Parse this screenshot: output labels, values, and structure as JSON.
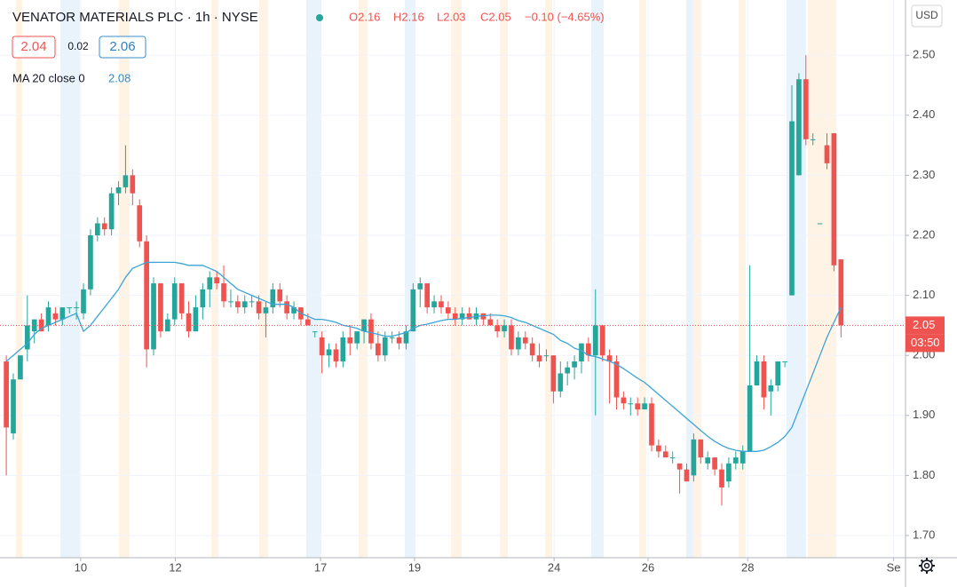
{
  "chart_data": {
    "type": "candlestick",
    "title": "VENATOR MATERIALS PLC · 1h · NYSE",
    "ohlc": [
      "O2.16",
      "H2.16",
      "L2.03",
      "C2.05",
      "−0.10 (−4.65%)"
    ],
    "bid": "2.04",
    "spread": "0.02",
    "ask": "2.06",
    "currency": "USD",
    "countdown": "03:50",
    "up_color": "#26a69a",
    "down_color": "#ef5350",
    "ylim": [
      1.663,
      2.592
    ],
    "yticks": [
      {
        "value": 1.7,
        "label": "1.70"
      },
      {
        "value": 1.8,
        "label": "1.80"
      },
      {
        "value": 1.9,
        "label": "1.90"
      },
      {
        "value": 2.0,
        "label": "2.00"
      },
      {
        "value": 2.1,
        "label": "2.10"
      },
      {
        "value": 2.2,
        "label": "2.20"
      },
      {
        "value": 2.3,
        "label": "2.30"
      },
      {
        "value": 2.4,
        "label": "2.40"
      },
      {
        "value": 2.5,
        "label": "2.50"
      }
    ],
    "xlim": [
      -0.9,
      128.2
    ],
    "xticks": [
      {
        "value": 10.6,
        "label": "10"
      },
      {
        "value": 24.1,
        "label": "12"
      },
      {
        "value": 44.8,
        "label": "17"
      },
      {
        "value": 58.2,
        "label": "19"
      },
      {
        "value": 78.1,
        "label": "24"
      },
      {
        "value": 91.5,
        "label": "26"
      },
      {
        "value": 105.7,
        "label": "28"
      },
      {
        "value": 126.5,
        "label": "Se"
      }
    ],
    "grid": true,
    "candles": [
      [
        1.99,
        2.0,
        1.8,
        1.88
      ],
      [
        1.87,
        1.97,
        1.86,
        1.96
      ],
      [
        1.96,
        2.0,
        1.96,
        2.0
      ],
      [
        2.01,
        2.1,
        1.99,
        2.05
      ],
      [
        2.04,
        2.06,
        2.02,
        2.06
      ],
      [
        2.06,
        2.07,
        2.04,
        2.04
      ],
      [
        2.05,
        2.09,
        2.04,
        2.08
      ],
      [
        2.07,
        2.08,
        2.05,
        2.06
      ],
      [
        2.06,
        2.08,
        2.05,
        2.08
      ],
      [
        2.08,
        2.08,
        2.07,
        2.08
      ],
      [
        2.08,
        2.09,
        2.06,
        2.08
      ],
      [
        2.07,
        2.12,
        2.06,
        2.11
      ],
      [
        2.11,
        2.21,
        2.1,
        2.2
      ],
      [
        2.2,
        2.23,
        2.19,
        2.22
      ],
      [
        2.22,
        2.23,
        2.2,
        2.21
      ],
      [
        2.21,
        2.28,
        2.2,
        2.27
      ],
      [
        2.27,
        2.29,
        2.25,
        2.28
      ],
      [
        2.28,
        2.35,
        2.27,
        2.3
      ],
      [
        2.3,
        2.31,
        2.25,
        2.27
      ],
      [
        2.25,
        2.26,
        2.18,
        2.19
      ],
      [
        2.19,
        2.2,
        1.98,
        2.01
      ],
      [
        2.01,
        2.13,
        2.0,
        2.12
      ],
      [
        2.12,
        2.12,
        2.03,
        2.04
      ],
      [
        2.04,
        2.07,
        2.04,
        2.06
      ],
      [
        2.06,
        2.13,
        2.05,
        2.12
      ],
      [
        2.12,
        2.12,
        2.06,
        2.07
      ],
      [
        2.07,
        2.09,
        2.03,
        2.04
      ],
      [
        2.04,
        2.1,
        2.04,
        2.08
      ],
      [
        2.08,
        2.12,
        2.06,
        2.11
      ],
      [
        2.11,
        2.14,
        2.08,
        2.13
      ],
      [
        2.13,
        2.14,
        2.11,
        2.12
      ],
      [
        2.12,
        2.15,
        2.08,
        2.09
      ],
      [
        2.09,
        2.11,
        2.08,
        2.09
      ],
      [
        2.09,
        2.1,
        2.07,
        2.08
      ],
      [
        2.08,
        2.1,
        2.07,
        2.09
      ],
      [
        2.09,
        2.1,
        2.08,
        2.09
      ],
      [
        2.09,
        2.1,
        2.06,
        2.07
      ],
      [
        2.07,
        2.09,
        2.03,
        2.08
      ],
      [
        2.08,
        2.12,
        2.07,
        2.11
      ],
      [
        2.11,
        2.12,
        2.08,
        2.09
      ],
      [
        2.09,
        2.1,
        2.06,
        2.07
      ],
      [
        2.07,
        2.09,
        2.06,
        2.08
      ],
      [
        2.08,
        2.08,
        2.05,
        2.06
      ],
      [
        2.06,
        2.07,
        2.05,
        2.05
      ],
      [
        2.04,
        2.04,
        2.03,
        2.04
      ],
      [
        2.03,
        2.04,
        1.97,
        2.0
      ],
      [
        2.0,
        2.02,
        1.98,
        2.01
      ],
      [
        2.01,
        2.02,
        1.98,
        1.99
      ],
      [
        1.99,
        2.04,
        1.98,
        2.03
      ],
      [
        2.03,
        2.05,
        2.0,
        2.02
      ],
      [
        2.02,
        2.04,
        2.01,
        2.04
      ],
      [
        2.04,
        2.06,
        2.02,
        2.06
      ],
      [
        2.06,
        2.07,
        2.01,
        2.02
      ],
      [
        2.02,
        2.04,
        1.99,
        2.0
      ],
      [
        2.0,
        2.04,
        1.99,
        2.03
      ],
      [
        2.03,
        2.04,
        2.02,
        2.03
      ],
      [
        2.03,
        2.04,
        2.01,
        2.02
      ],
      [
        2.02,
        2.05,
        2.01,
        2.04
      ],
      [
        2.04,
        2.12,
        2.04,
        2.11
      ],
      [
        2.11,
        2.13,
        2.08,
        2.12
      ],
      [
        2.12,
        2.12,
        2.07,
        2.08
      ],
      [
        2.08,
        2.1,
        2.07,
        2.09
      ],
      [
        2.09,
        2.1,
        2.07,
        2.08
      ],
      [
        2.08,
        2.09,
        2.06,
        2.07
      ],
      [
        2.07,
        2.08,
        2.05,
        2.06
      ],
      [
        2.06,
        2.08,
        2.05,
        2.07
      ],
      [
        2.07,
        2.08,
        2.06,
        2.06
      ],
      [
        2.06,
        2.08,
        2.05,
        2.07
      ],
      [
        2.07,
        2.07,
        2.05,
        2.06
      ],
      [
        2.06,
        2.07,
        2.05,
        2.05
      ],
      [
        2.05,
        2.06,
        2.03,
        2.04
      ],
      [
        2.04,
        2.06,
        2.03,
        2.05
      ],
      [
        2.05,
        2.06,
        2.0,
        2.01
      ],
      [
        2.01,
        2.04,
        2.0,
        2.03
      ],
      [
        2.03,
        2.04,
        2.01,
        2.02
      ],
      [
        2.02,
        2.03,
        1.99,
        2.0
      ],
      [
        2.0,
        2.02,
        1.98,
        1.99
      ],
      [
        2.0,
        2.01,
        1.99,
        2.0
      ],
      [
        2.0,
        2.0,
        1.92,
        1.94
      ],
      [
        1.94,
        1.99,
        1.93,
        1.97
      ],
      [
        1.97,
        1.99,
        1.95,
        1.98
      ],
      [
        1.98,
        2.0,
        1.96,
        1.99
      ],
      [
        1.99,
        2.02,
        1.97,
        2.02
      ],
      [
        2.02,
        2.03,
        1.99,
        2.0
      ],
      [
        2.0,
        2.11,
        1.9,
        2.05
      ],
      [
        2.05,
        2.05,
        1.99,
        2.0
      ],
      [
        2.0,
        2.01,
        1.92,
        1.99
      ],
      [
        1.99,
        2.0,
        1.91,
        1.93
      ],
      [
        1.93,
        1.94,
        1.91,
        1.92
      ],
      [
        1.92,
        1.93,
        1.9,
        1.92
      ],
      [
        1.92,
        1.93,
        1.9,
        1.91
      ],
      [
        1.91,
        1.93,
        1.91,
        1.92
      ],
      [
        1.92,
        1.93,
        1.84,
        1.85
      ],
      [
        1.85,
        1.86,
        1.83,
        1.84
      ],
      [
        1.84,
        1.85,
        1.83,
        1.83
      ],
      [
        1.83,
        1.84,
        1.82,
        1.83
      ],
      [
        1.82,
        1.82,
        1.77,
        1.81
      ],
      [
        1.81,
        1.82,
        1.79,
        1.79
      ],
      [
        1.8,
        1.87,
        1.79,
        1.86
      ],
      [
        1.86,
        1.86,
        1.82,
        1.83
      ],
      [
        1.82,
        1.84,
        1.81,
        1.83
      ],
      [
        1.83,
        1.83,
        1.8,
        1.81
      ],
      [
        1.81,
        1.82,
        1.75,
        1.78
      ],
      [
        1.79,
        1.83,
        1.78,
        1.82
      ],
      [
        1.82,
        1.84,
        1.81,
        1.83
      ],
      [
        1.82,
        1.85,
        1.81,
        1.84
      ],
      [
        1.84,
        2.15,
        1.84,
        1.95
      ],
      [
        1.95,
        2.0,
        1.95,
        1.99
      ],
      [
        1.99,
        2.0,
        1.91,
        1.93
      ],
      [
        1.94,
        1.96,
        1.9,
        1.95
      ],
      [
        1.95,
        1.99,
        1.94,
        1.99
      ],
      [
        1.99,
        1.99,
        1.98,
        1.99
      ],
      [
        2.1,
        2.45,
        2.1,
        2.39
      ],
      [
        2.3,
        2.47,
        2.3,
        2.46
      ],
      [
        2.46,
        2.5,
        2.35,
        2.36
      ],
      [
        2.36,
        2.37,
        2.35,
        2.36
      ],
      [
        2.22,
        2.22,
        2.22,
        2.22
      ],
      [
        2.35,
        2.37,
        2.31,
        2.32
      ],
      [
        2.37,
        2.37,
        2.14,
        2.15
      ],
      [
        2.16,
        2.16,
        2.03,
        2.05
      ]
    ],
    "ma": {
      "name": "MA 20 close 0",
      "color": "#3ba4d8",
      "values": [
        1.99,
        2.0,
        2.01,
        2.02,
        2.035,
        2.045,
        2.05,
        2.055,
        2.06,
        2.065,
        2.07,
        2.04,
        2.05,
        2.065,
        2.08,
        2.095,
        2.11,
        2.13,
        2.145,
        2.15,
        2.155,
        2.155,
        2.155,
        2.155,
        2.155,
        2.153,
        2.15,
        2.15,
        2.15,
        2.145,
        2.14,
        2.13,
        2.12,
        2.11,
        2.105,
        2.1,
        2.095,
        2.09,
        2.085,
        2.085,
        2.085,
        2.08,
        2.07,
        2.065,
        2.06,
        2.06,
        2.058,
        2.055,
        2.05,
        2.048,
        2.045,
        2.04,
        2.038,
        2.035,
        2.032,
        2.032,
        2.035,
        2.038,
        2.045,
        2.05,
        2.052,
        2.055,
        2.058,
        2.06,
        2.06,
        2.062,
        2.063,
        2.065,
        2.066,
        2.067,
        2.067,
        2.066,
        2.063,
        2.058,
        2.055,
        2.05,
        2.045,
        2.04,
        2.035,
        2.025,
        2.02,
        2.012,
        2.008,
        2.0,
        1.998,
        1.994,
        1.99,
        1.985,
        1.978,
        1.97,
        1.962,
        1.955,
        1.945,
        1.935,
        1.925,
        1.915,
        1.905,
        1.895,
        1.885,
        1.875,
        1.865,
        1.857,
        1.85,
        1.845,
        1.842,
        1.84,
        1.84,
        1.84,
        1.842,
        1.848,
        1.855,
        1.865,
        1.88,
        1.91,
        1.94,
        1.97,
        2.0,
        2.03,
        2.055,
        2.08
      ]
    }
  }
}
